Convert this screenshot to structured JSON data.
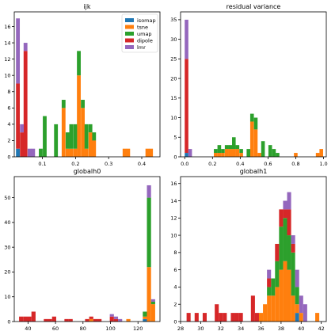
{
  "colors": {
    "isomap": "#1f77b4",
    "tsne": "#ff7f0e",
    "umap": "#2ca02c",
    "dipole": "#d62728",
    "lmr": "#9467bd"
  },
  "chart_data": [
    {
      "type": "bar",
      "stacked": true,
      "title": "ijk",
      "xlim": [
        0.015,
        0.455
      ],
      "ylim": [
        0,
        17.8
      ],
      "xticks": [
        0.1,
        0.2,
        0.3,
        0.4
      ],
      "xtick_labels": [
        "0.1",
        "0.2",
        "0.3",
        "0.4"
      ],
      "yticks": [
        0,
        2,
        4,
        6,
        8,
        10,
        12,
        14,
        16
      ],
      "ytick_labels": [
        "0",
        "2",
        "4",
        "6",
        "8",
        "10",
        "12",
        "14",
        "16"
      ],
      "bin_width": 0.0115,
      "legend": {
        "position": "top-right",
        "entries": [
          "isomap",
          "tsne",
          "umap",
          "dipole",
          "lmr"
        ]
      },
      "series": [
        {
          "name": "isomap",
          "bins": [
            [
              0.026,
              1
            ]
          ]
        },
        {
          "name": "tsne",
          "bins": [
            [
              0.164,
              6
            ],
            [
              0.176,
              1
            ],
            [
              0.187,
              1
            ],
            [
              0.199,
              1
            ],
            [
              0.21,
              10
            ],
            [
              0.222,
              6
            ],
            [
              0.233,
              1
            ],
            [
              0.245,
              3
            ],
            [
              0.256,
              2
            ],
            [
              0.348,
              1
            ],
            [
              0.359,
              1
            ],
            [
              0.417,
              1
            ],
            [
              0.428,
              1
            ]
          ]
        },
        {
          "name": "umap",
          "bins": [
            [
              0.095,
              1
            ],
            [
              0.107,
              5
            ],
            [
              0.141,
              4
            ],
            [
              0.164,
              1
            ],
            [
              0.176,
              2
            ],
            [
              0.187,
              3
            ],
            [
              0.199,
              3
            ],
            [
              0.21,
              3
            ],
            [
              0.222,
              1
            ],
            [
              0.233,
              3
            ],
            [
              0.245,
              1
            ],
            [
              0.256,
              1
            ]
          ]
        },
        {
          "name": "dipole",
          "bins": [
            [
              0.026,
              8
            ],
            [
              0.038,
              3
            ],
            [
              0.049,
              13
            ]
          ]
        },
        {
          "name": "lmr",
          "bins": [
            [
              0.026,
              8
            ],
            [
              0.038,
              1
            ],
            [
              0.049,
              1
            ],
            [
              0.061,
              1
            ],
            [
              0.072,
              1
            ]
          ]
        }
      ]
    },
    {
      "type": "bar",
      "stacked": true,
      "title": "residual variance",
      "xlim": [
        -0.03,
        1.02
      ],
      "ylim": [
        0,
        37
      ],
      "xticks": [
        0.0,
        0.2,
        0.4,
        0.6,
        0.8,
        1.0
      ],
      "xtick_labels": [
        "0.0",
        "0.2",
        "0.4",
        "0.6",
        "0.8",
        "1.0"
      ],
      "yticks": [
        0,
        5,
        10,
        15,
        20,
        25,
        30,
        35
      ],
      "ytick_labels": [
        "0",
        "5",
        "10",
        "15",
        "20",
        "25",
        "30",
        "35"
      ],
      "bin_width": 0.0262,
      "series": [
        {
          "name": "isomap",
          "bins": [
            [
              0.013,
              1
            ]
          ]
        },
        {
          "name": "tsne",
          "bins": [
            [
              0.223,
              1
            ],
            [
              0.249,
              1
            ],
            [
              0.275,
              1
            ],
            [
              0.302,
              2
            ],
            [
              0.328,
              2
            ],
            [
              0.354,
              2
            ],
            [
              0.38,
              2
            ],
            [
              0.407,
              1
            ],
            [
              0.485,
              9
            ],
            [
              0.512,
              7
            ],
            [
              0.538,
              1
            ],
            [
              0.8,
              1
            ],
            [
              0.958,
              1
            ],
            [
              0.984,
              2
            ]
          ]
        },
        {
          "name": "umap",
          "bins": [
            [
              0.223,
              1
            ],
            [
              0.249,
              2
            ],
            [
              0.275,
              1
            ],
            [
              0.302,
              1
            ],
            [
              0.328,
              1
            ],
            [
              0.354,
              3
            ],
            [
              0.38,
              1
            ],
            [
              0.407,
              1
            ],
            [
              0.459,
              2
            ],
            [
              0.485,
              2
            ],
            [
              0.512,
              3
            ],
            [
              0.564,
              4
            ],
            [
              0.616,
              3
            ],
            [
              0.643,
              2
            ],
            [
              0.669,
              1
            ]
          ]
        },
        {
          "name": "dipole",
          "bins": [
            [
              0.013,
              24
            ]
          ]
        },
        {
          "name": "lmr",
          "bins": [
            [
              0.013,
              10
            ],
            [
              0.039,
              2
            ]
          ]
        }
      ]
    },
    {
      "type": "bar",
      "stacked": true,
      "title": "globalh0",
      "xlim": [
        30,
        136
      ],
      "ylim": [
        0,
        58.5
      ],
      "xticks": [
        40,
        60,
        80,
        100,
        120
      ],
      "xtick_labels": [
        "40",
        "60",
        "80",
        "100",
        "120"
      ],
      "yticks": [
        0,
        10,
        20,
        30,
        40,
        50
      ],
      "ytick_labels": [
        "0",
        "10",
        "20",
        "30",
        "40",
        "50"
      ],
      "bin_width": 3.0,
      "series": [
        {
          "name": "isomap",
          "bins": [
            [
              125,
              1
            ]
          ]
        },
        {
          "name": "tsne",
          "bins": [
            [
              86,
              1
            ],
            [
              113,
              1
            ],
            [
              125,
              1
            ],
            [
              128,
              22
            ],
            [
              131,
              7
            ]
          ]
        },
        {
          "name": "umap",
          "bins": [
            [
              125,
              2
            ],
            [
              128,
              28
            ],
            [
              131,
              1
            ]
          ]
        },
        {
          "name": "dipole",
          "bins": [
            [
              35,
              2
            ],
            [
              38,
              2
            ],
            [
              41,
              2
            ],
            [
              44,
              4
            ],
            [
              53,
              1
            ],
            [
              56,
              1
            ],
            [
              59,
              2
            ],
            [
              68,
              1
            ],
            [
              71,
              1
            ],
            [
              83,
              1
            ],
            [
              86,
              1
            ],
            [
              89,
              1
            ],
            [
              92,
              1
            ],
            [
              101,
              2
            ],
            [
              104,
              1
            ]
          ]
        },
        {
          "name": "lmr",
          "bins": [
            [
              101,
              1
            ],
            [
              104,
              1
            ],
            [
              107,
              1
            ],
            [
              128,
              5
            ],
            [
              131,
              1
            ]
          ]
        }
      ]
    },
    {
      "type": "bar",
      "stacked": true,
      "title": "globalh1",
      "xlim": [
        28,
        42.5
      ],
      "ylim": [
        0,
        16.8
      ],
      "xticks": [
        28,
        30,
        32,
        34,
        36,
        38,
        40,
        42
      ],
      "xtick_labels": [
        "28",
        "30",
        "32",
        "34",
        "36",
        "38",
        "40",
        "42"
      ],
      "yticks": [
        0,
        2,
        4,
        6,
        8,
        10,
        12,
        14,
        16
      ],
      "ytick_labels": [
        "0",
        "2",
        "4",
        "6",
        "8",
        "10",
        "12",
        "14",
        "16"
      ],
      "bin_width": 0.4,
      "series": [
        {
          "name": "isomap",
          "bins": [
            [
              39.6,
              1
            ]
          ]
        },
        {
          "name": "tsne",
          "bins": [
            [
              36.0,
              1
            ],
            [
              36.4,
              2
            ],
            [
              36.8,
              3
            ],
            [
              37.2,
              3
            ],
            [
              37.6,
              4
            ],
            [
              38.0,
              6
            ],
            [
              38.4,
              7
            ],
            [
              38.8,
              6
            ],
            [
              39.2,
              3
            ],
            [
              39.6,
              1
            ],
            [
              40.0,
              1
            ],
            [
              41.6,
              1
            ]
          ]
        },
        {
          "name": "umap",
          "bins": [
            [
              36.8,
              1
            ],
            [
              37.2,
              2
            ],
            [
              37.6,
              3
            ],
            [
              38.0,
              5
            ],
            [
              38.4,
              5
            ],
            [
              38.8,
              4
            ],
            [
              39.2,
              5
            ],
            [
              39.6,
              2
            ]
          ]
        },
        {
          "name": "dipole",
          "bins": [
            [
              28.8,
              1
            ],
            [
              29.6,
              1
            ],
            [
              30.4,
              1
            ],
            [
              31.6,
              2
            ],
            [
              32.0,
              1
            ],
            [
              32.4,
              1
            ],
            [
              33.2,
              1
            ],
            [
              33.6,
              1
            ],
            [
              34.0,
              1
            ],
            [
              35.2,
              3
            ],
            [
              35.6,
              1
            ],
            [
              36.8,
              1
            ],
            [
              37.6,
              2
            ],
            [
              38.0,
              2
            ],
            [
              38.4,
              1
            ],
            [
              38.8,
              3
            ],
            [
              39.2,
              1
            ]
          ]
        },
        {
          "name": "lmr",
          "bins": [
            [
              36.8,
              1
            ],
            [
              38.4,
              1
            ],
            [
              38.8,
              2
            ],
            [
              39.2,
              1
            ],
            [
              39.6,
              2
            ],
            [
              40.0,
              2
            ],
            [
              40.4,
              2
            ]
          ]
        }
      ]
    }
  ]
}
